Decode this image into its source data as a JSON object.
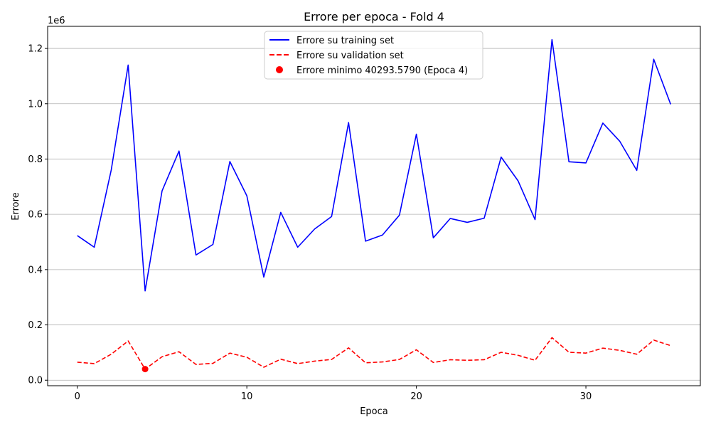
{
  "chart_data": {
    "type": "line",
    "title": "Errore per epoca - Fold 4",
    "xlabel": "Epoca",
    "ylabel": "Errore",
    "y_scale_label": "1e6",
    "xlim": [
      -1.75,
      36.75
    ],
    "ylim": [
      -0.02,
      1.28
    ],
    "x_ticks": [
      0,
      10,
      20,
      30
    ],
    "y_ticks": [
      0.0,
      0.2,
      0.4,
      0.6,
      0.8,
      1.0,
      1.2
    ],
    "y_tick_labels": [
      "0.0",
      "0.2",
      "0.4",
      "0.6",
      "0.8",
      "1.0",
      "1.2"
    ],
    "grid": "y",
    "legend_position": "top-center",
    "x": [
      0,
      1,
      2,
      3,
      4,
      5,
      6,
      7,
      8,
      9,
      10,
      11,
      12,
      13,
      14,
      15,
      16,
      17,
      18,
      19,
      20,
      21,
      22,
      23,
      24,
      25,
      26,
      27,
      28,
      29,
      30,
      31,
      32,
      33,
      34,
      35
    ],
    "series": [
      {
        "name": "Errore su training set",
        "style": "solid",
        "color": "#0000ff",
        "values": [
          0.523,
          0.481,
          0.76,
          1.14,
          0.323,
          0.685,
          0.829,
          0.453,
          0.491,
          0.791,
          0.667,
          0.373,
          0.607,
          0.481,
          0.547,
          0.592,
          0.932,
          0.503,
          0.525,
          0.597,
          0.89,
          0.515,
          0.585,
          0.571,
          0.586,
          0.807,
          0.721,
          0.581,
          1.232,
          0.79,
          0.786,
          0.93,
          0.864,
          0.759,
          1.161,
          0.998
        ]
      },
      {
        "name": "Errore su validation set",
        "style": "dashed",
        "color": "#ff0000",
        "values": [
          0.065,
          0.06,
          0.094,
          0.142,
          0.04,
          0.085,
          0.103,
          0.057,
          0.061,
          0.098,
          0.083,
          0.047,
          0.076,
          0.06,
          0.069,
          0.075,
          0.117,
          0.063,
          0.066,
          0.075,
          0.11,
          0.064,
          0.074,
          0.072,
          0.074,
          0.101,
          0.09,
          0.072,
          0.154,
          0.101,
          0.098,
          0.116,
          0.108,
          0.094,
          0.145,
          0.125
        ]
      }
    ],
    "marker": {
      "label": "Errore minimo 40293.5790 (Epoca 4)",
      "color": "#ff0000",
      "x": 4,
      "y": 0.0403
    }
  }
}
